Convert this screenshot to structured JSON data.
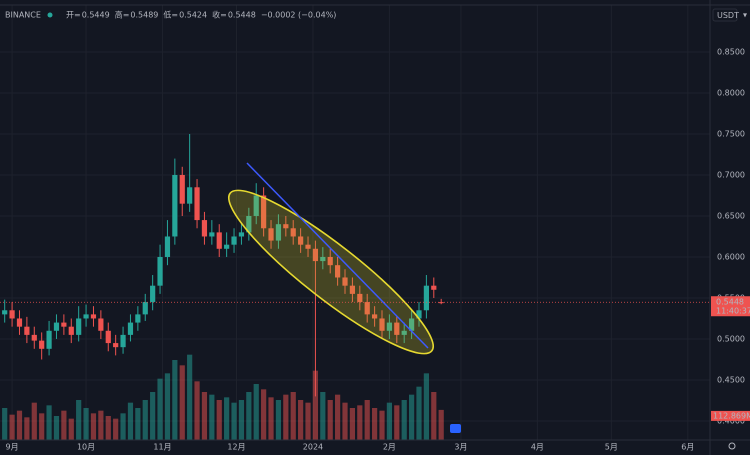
{
  "ui": {
    "exchange": "BINANCE",
    "ohlc": [
      {
        "label": "开=",
        "value": "0.5449"
      },
      {
        "label": "高=",
        "value": "0.5489"
      },
      {
        "label": "低=",
        "value": "0.5424"
      },
      {
        "label": "收=",
        "value": "0.5448"
      }
    ],
    "change": "−0.0002 (−0.04%)",
    "currency": "USDT",
    "price_tag": "0.5448",
    "countdown": "11:40:37",
    "volume_tag": "112.869M"
  },
  "chart_data": {
    "type": "candlestick",
    "x": [
      -3,
      0,
      3,
      6,
      9,
      12,
      15,
      18,
      21,
      24,
      27,
      30,
      33,
      36,
      39,
      42,
      45,
      48,
      51,
      54,
      57,
      60,
      63,
      66,
      69,
      72,
      75,
      78,
      81,
      84,
      87,
      90,
      93,
      96,
      99,
      102,
      105,
      108,
      111,
      114,
      117,
      120,
      123,
      126,
      129,
      132,
      135,
      138,
      141,
      144,
      147,
      150,
      153,
      156,
      159,
      162,
      165,
      168,
      171,
      174
    ],
    "series": [
      {
        "up_color": "#26a69a",
        "down_color": "#ef5350",
        "open": [
          0.53,
          0.535,
          0.525,
          0.515,
          0.505,
          0.498,
          0.488,
          0.51,
          0.52,
          0.515,
          0.505,
          0.525,
          0.53,
          0.525,
          0.51,
          0.495,
          0.49,
          0.505,
          0.52,
          0.53,
          0.545,
          0.565,
          0.6,
          0.625,
          0.7,
          0.665,
          0.685,
          0.645,
          0.625,
          0.63,
          0.61,
          0.615,
          0.625,
          0.63,
          0.65,
          0.675,
          0.635,
          0.62,
          0.64,
          0.635,
          0.625,
          0.615,
          0.61,
          0.595,
          0.6,
          0.59,
          0.575,
          0.565,
          0.555,
          0.545,
          0.53,
          0.525,
          0.51,
          0.52,
          0.505,
          0.51,
          0.525,
          0.535,
          0.565,
          0.5449
        ],
        "high": [
          0.548,
          0.545,
          0.535,
          0.527,
          0.515,
          0.508,
          0.522,
          0.53,
          0.53,
          0.525,
          0.54,
          0.542,
          0.54,
          0.535,
          0.52,
          0.505,
          0.515,
          0.53,
          0.54,
          0.555,
          0.578,
          0.615,
          0.645,
          0.72,
          0.71,
          0.75,
          0.695,
          0.655,
          0.645,
          0.64,
          0.63,
          0.635,
          0.642,
          0.66,
          0.69,
          0.685,
          0.645,
          0.652,
          0.65,
          0.645,
          0.635,
          0.625,
          0.62,
          0.612,
          0.61,
          0.6,
          0.585,
          0.575,
          0.565,
          0.555,
          0.54,
          0.535,
          0.53,
          0.528,
          0.52,
          0.535,
          0.545,
          0.578,
          0.575,
          0.5489
        ],
        "low": [
          0.52,
          0.515,
          0.505,
          0.495,
          0.488,
          0.475,
          0.48,
          0.5,
          0.505,
          0.495,
          0.497,
          0.515,
          0.515,
          0.5,
          0.485,
          0.48,
          0.482,
          0.497,
          0.51,
          0.522,
          0.535,
          0.555,
          0.59,
          0.615,
          0.65,
          0.655,
          0.635,
          0.615,
          0.615,
          0.6,
          0.6,
          0.605,
          0.615,
          0.62,
          0.64,
          0.625,
          0.61,
          0.61,
          0.625,
          0.615,
          0.605,
          0.6,
          0.43,
          0.585,
          0.58,
          0.565,
          0.555,
          0.545,
          0.535,
          0.52,
          0.515,
          0.5,
          0.5,
          0.495,
          0.495,
          0.5,
          0.515,
          0.525,
          0.55,
          0.5424
        ],
        "close": [
          0.535,
          0.525,
          0.515,
          0.505,
          0.498,
          0.488,
          0.51,
          0.52,
          0.515,
          0.505,
          0.525,
          0.53,
          0.525,
          0.51,
          0.495,
          0.49,
          0.505,
          0.52,
          0.53,
          0.545,
          0.565,
          0.6,
          0.625,
          0.7,
          0.665,
          0.685,
          0.645,
          0.625,
          0.63,
          0.61,
          0.615,
          0.625,
          0.63,
          0.65,
          0.675,
          0.635,
          0.62,
          0.64,
          0.635,
          0.625,
          0.615,
          0.61,
          0.595,
          0.6,
          0.59,
          0.575,
          0.565,
          0.555,
          0.545,
          0.53,
          0.525,
          0.51,
          0.52,
          0.505,
          0.51,
          0.525,
          0.535,
          0.565,
          0.56,
          0.5448
        ],
        "volume": [
          120,
          95,
          110,
          85,
          140,
          100,
          130,
          90,
          110,
          80,
          150,
          120,
          100,
          110,
          90,
          80,
          100,
          140,
          120,
          150,
          180,
          230,
          250,
          300,
          280,
          320,
          220,
          180,
          170,
          150,
          160,
          140,
          150,
          180,
          210,
          190,
          160,
          150,
          170,
          180,
          150,
          140,
          260,
          180,
          150,
          170,
          140,
          120,
          130,
          150,
          120,
          110,
          140,
          130,
          150,
          170,
          200,
          250,
          180,
          112.869
        ]
      }
    ],
    "xlim": [
      -4.9,
      283
    ],
    "xticks": [
      {
        "value": 0,
        "label": "9月"
      },
      {
        "value": 30,
        "label": "10月"
      },
      {
        "value": 61,
        "label": "11月"
      },
      {
        "value": 91,
        "label": "12月"
      },
      {
        "value": 122,
        "label": "2024"
      },
      {
        "value": 153,
        "label": "2月"
      },
      {
        "value": 182,
        "label": "3月"
      },
      {
        "value": 213,
        "label": "4月"
      },
      {
        "value": 243,
        "label": "5月"
      },
      {
        "value": 274,
        "label": "6月"
      }
    ],
    "ylim": [
      0.3768,
      0.9134
    ],
    "yticks": [
      {
        "value": 0.4,
        "label": "0.4000"
      },
      {
        "value": 0.45,
        "label": "0.4500"
      },
      {
        "value": 0.5,
        "label": "0.5000"
      },
      {
        "value": 0.55,
        "label": "0.5500"
      },
      {
        "value": 0.6,
        "label": "0.6000"
      },
      {
        "value": 0.65,
        "label": "0.6500"
      },
      {
        "value": 0.7,
        "label": "0.7000"
      },
      {
        "value": 0.75,
        "label": "0.7500"
      },
      {
        "value": 0.8,
        "label": "0.8000"
      },
      {
        "value": 0.85,
        "label": "0.8500"
      }
    ],
    "y2lim": [
      0,
      1650
    ],
    "grid": true
  }
}
